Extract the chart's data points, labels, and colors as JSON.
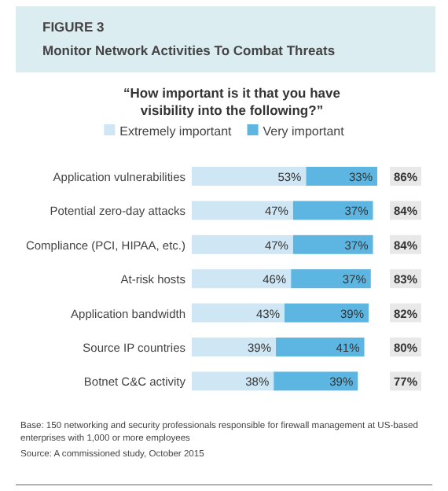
{
  "chart_data": {
    "type": "bar",
    "orientation": "horizontal",
    "stacked": true,
    "title": "FIGURE 3",
    "subtitle": "Monitor Network Activities To Combat Threats",
    "categories": [
      "Application vulnerabilities",
      "Potential zero-day attacks",
      "Compliance (PCI, HIPAA, etc.)",
      "At-risk hosts",
      "Application bandwidth",
      "Source IP countries",
      "Botnet C&C activity"
    ],
    "tick_labels": "y",
    "legend": "top",
    "series": [
      {
        "name": "Extremely important",
        "color": "#cfe7f4",
        "values": [
          53,
          47,
          47,
          46,
          43,
          39,
          38
        ],
        "value_labels": [
          "53%",
          "47%",
          "47%",
          "46%",
          "43%",
          "39%",
          "38%"
        ]
      },
      {
        "name": "Very important",
        "color": "#5db6e2",
        "values": [
          33,
          37,
          37,
          37,
          39,
          41,
          39
        ],
        "value_labels": [
          "33%",
          "37%",
          "37%",
          "37%",
          "39%",
          "41%",
          "39%"
        ]
      }
    ],
    "totals": [
      "86%",
      "84%",
      "84%",
      "83%",
      "82%",
      "80%",
      "77%"
    ],
    "annotations": [
      "“How important is it that you have visibility into the following?”",
      "Base: 150 networking and security professionals responsible for firewall management at US-based enterprises with 1,000 or more employees",
      "Source: A commissioned study, October 2015"
    ]
  }
}
